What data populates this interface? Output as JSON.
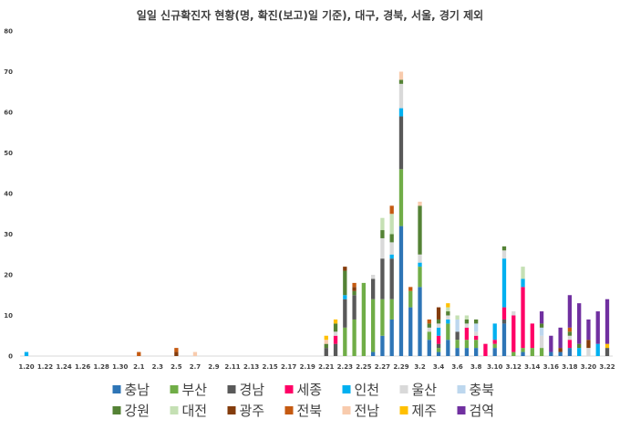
{
  "chart_data": {
    "type": "bar",
    "stacked": true,
    "title": "일일 신규확진자 현황(명, 확진(보고)일 기준), 대구, 경북, 서울, 경기 제외",
    "xlabel": "",
    "ylabel": "",
    "ylim": [
      0,
      80
    ],
    "yticks": [
      0,
      10,
      20,
      30,
      40,
      50,
      60,
      70,
      80
    ],
    "grid": false,
    "legend_position": "bottom",
    "categories": [
      "1.20",
      "1.21",
      "1.22",
      "1.23",
      "1.24",
      "1.25",
      "1.26",
      "1.27",
      "1.28",
      "1.29",
      "1.30",
      "1.31",
      "2.1",
      "2.2",
      "2.3",
      "2.4",
      "2.5",
      "2.6",
      "2.7",
      "2.8",
      "2.9",
      "2.10",
      "2.11",
      "2.12",
      "2.13",
      "2.14",
      "2.15",
      "2.16",
      "2.17",
      "2.18",
      "2.19",
      "2.20",
      "2.21",
      "2.22",
      "2.23",
      "2.24",
      "2.25",
      "2.26",
      "2.27",
      "2.28",
      "2.29",
      "3.1",
      "3.2",
      "3.3",
      "3.4",
      "3.5",
      "3.6",
      "3.7",
      "3.8",
      "3.9",
      "3.10",
      "3.11",
      "3.12",
      "3.13",
      "3.14",
      "3.15",
      "3.16",
      "3.17",
      "3.18",
      "3.19",
      "3.20",
      "3.21",
      "3.22"
    ],
    "tick_labels": [
      "1.20",
      "1.22",
      "1.24",
      "1.26",
      "1.28",
      "1.30",
      "2.1",
      "2.3",
      "2.5",
      "2.7",
      "2.9",
      "2.11",
      "2.13",
      "2.15",
      "2.17",
      "2.19",
      "2.21",
      "2.23",
      "2.25",
      "2.27",
      "2.29",
      "3.2",
      "3.4",
      "3.6",
      "3.8",
      "3.10",
      "3.12",
      "3.14",
      "3.16",
      "3.18",
      "3.20",
      "3.22"
    ],
    "series": [
      {
        "name": "충남",
        "color": "#2e75b6",
        "values": [
          0,
          0,
          0,
          0,
          0,
          0,
          0,
          0,
          0,
          0,
          0,
          0,
          0,
          0,
          0,
          0,
          0,
          0,
          0,
          0,
          0,
          0,
          0,
          0,
          0,
          0,
          0,
          0,
          0,
          0,
          0,
          0,
          0,
          0,
          0,
          0,
          0,
          1,
          5,
          9,
          32,
          12,
          17,
          4,
          1,
          4,
          2,
          2,
          2,
          0,
          2,
          8,
          0,
          1,
          0,
          0,
          1,
          1,
          2,
          0,
          0,
          0,
          0
        ]
      },
      {
        "name": "부산",
        "color": "#70ad47",
        "values": [
          0,
          0,
          0,
          0,
          0,
          0,
          0,
          0,
          0,
          0,
          0,
          0,
          0,
          0,
          0,
          0,
          0,
          0,
          0,
          0,
          0,
          0,
          0,
          0,
          0,
          0,
          0,
          0,
          0,
          0,
          0,
          0,
          0,
          0,
          7,
          9,
          18,
          13,
          9,
          5,
          14,
          4,
          5,
          2,
          1,
          4,
          2,
          2,
          2,
          0,
          1,
          0,
          1,
          1,
          2,
          2,
          0,
          0,
          0,
          0,
          0,
          0,
          0
        ]
      },
      {
        "name": "경남",
        "color": "#595959",
        "values": [
          0,
          0,
          0,
          0,
          0,
          0,
          0,
          0,
          0,
          0,
          0,
          0,
          0,
          0,
          0,
          0,
          0,
          0,
          0,
          0,
          0,
          0,
          0,
          0,
          0,
          0,
          0,
          0,
          0,
          0,
          0,
          0,
          2,
          3,
          7,
          6,
          0,
          5,
          10,
          10,
          13,
          0,
          0,
          0,
          1,
          0,
          2,
          0,
          0,
          0,
          0,
          1,
          0,
          0,
          0,
          0,
          0,
          0,
          0,
          0,
          0,
          0,
          2
        ]
      },
      {
        "name": "세종",
        "color": "#ff0066",
        "values": [
          0,
          0,
          0,
          0,
          0,
          0,
          0,
          0,
          0,
          0,
          0,
          0,
          0,
          0,
          0,
          0,
          0,
          0,
          0,
          0,
          0,
          0,
          0,
          0,
          0,
          0,
          0,
          0,
          0,
          0,
          0,
          0,
          0,
          2,
          0,
          0,
          0,
          0,
          0,
          0,
          0,
          0,
          0,
          0,
          2,
          0,
          0,
          3,
          1,
          3,
          1,
          3,
          9,
          15,
          6,
          0,
          0,
          0,
          2,
          0,
          0,
          0,
          0
        ]
      },
      {
        "name": "인천",
        "color": "#00b0f0",
        "values": [
          1,
          0,
          0,
          0,
          0,
          0,
          0,
          0,
          0,
          0,
          0,
          0,
          0,
          0,
          0,
          0,
          0,
          0,
          0,
          0,
          0,
          0,
          0,
          0,
          0,
          0,
          0,
          0,
          0,
          0,
          0,
          0,
          0,
          0,
          1,
          0,
          0,
          0,
          0,
          1,
          2,
          0,
          1,
          0,
          2,
          1,
          0,
          0,
          0,
          0,
          4,
          12,
          0,
          2,
          0,
          0,
          0,
          0,
          0,
          2,
          0,
          3,
          0
        ]
      },
      {
        "name": "울산",
        "color": "#d9d9d9",
        "values": [
          0,
          0,
          0,
          0,
          0,
          0,
          0,
          0,
          0,
          0,
          0,
          0,
          0,
          0,
          0,
          0,
          0,
          0,
          0,
          0,
          0,
          0,
          0,
          0,
          0,
          0,
          0,
          0,
          0,
          0,
          0,
          0,
          0,
          1,
          0,
          0,
          0,
          1,
          5,
          3,
          6,
          0,
          2,
          1,
          1,
          1,
          0,
          1,
          1,
          0,
          0,
          2,
          1,
          0,
          0,
          3,
          0,
          0,
          1,
          0,
          2,
          0,
          0
        ]
      },
      {
        "name": "충북",
        "color": "#bdd7ee",
        "values": [
          0,
          0,
          0,
          0,
          0,
          0,
          0,
          0,
          0,
          0,
          0,
          0,
          0,
          0,
          0,
          0,
          0,
          0,
          0,
          0,
          0,
          0,
          0,
          0,
          0,
          0,
          0,
          0,
          0,
          0,
          0,
          0,
          0,
          0,
          0,
          0,
          0,
          0,
          0,
          0,
          0,
          0,
          0,
          0,
          0,
          0,
          3,
          0,
          2,
          0,
          0,
          0,
          0,
          0,
          0,
          2,
          0,
          0,
          0,
          0,
          0,
          0,
          0
        ]
      },
      {
        "name": "강원",
        "color": "#548235",
        "values": [
          0,
          0,
          0,
          0,
          0,
          0,
          0,
          0,
          0,
          0,
          0,
          0,
          0,
          0,
          0,
          0,
          0,
          0,
          0,
          0,
          0,
          0,
          0,
          0,
          0,
          0,
          0,
          0,
          0,
          0,
          0,
          0,
          1,
          2,
          6,
          1,
          0,
          0,
          2,
          2,
          1,
          0,
          12,
          1,
          1,
          1,
          0,
          1,
          1,
          0,
          0,
          1,
          0,
          0,
          0,
          1,
          0,
          0,
          1,
          1,
          0,
          0,
          0
        ]
      },
      {
        "name": "대전",
        "color": "#c5e0b4",
        "values": [
          0,
          0,
          0,
          0,
          0,
          0,
          0,
          0,
          0,
          0,
          0,
          0,
          0,
          0,
          0,
          0,
          0,
          0,
          0,
          0,
          0,
          0,
          0,
          0,
          0,
          0,
          0,
          0,
          0,
          0,
          0,
          0,
          0,
          0,
          0,
          0,
          0,
          0,
          3,
          5,
          0,
          0,
          0,
          0,
          0,
          1,
          1,
          1,
          0,
          0,
          0,
          0,
          0,
          3,
          0,
          0,
          0,
          0,
          0,
          0,
          0,
          0,
          0
        ]
      },
      {
        "name": "광주",
        "color": "#843c0c",
        "values": [
          0,
          0,
          0,
          0,
          0,
          0,
          0,
          0,
          0,
          0,
          0,
          0,
          0,
          0,
          0,
          0,
          1,
          0,
          0,
          0,
          0,
          0,
          0,
          0,
          0,
          0,
          0,
          0,
          0,
          0,
          0,
          0,
          0,
          0,
          1,
          1,
          0,
          0,
          0,
          0,
          0,
          0,
          0,
          0,
          3,
          0,
          0,
          0,
          0,
          0,
          0,
          0,
          0,
          0,
          0,
          0,
          0,
          1,
          0,
          0,
          2,
          0,
          0
        ]
      },
      {
        "name": "전북",
        "color": "#c55a11",
        "values": [
          0,
          0,
          0,
          0,
          0,
          0,
          0,
          0,
          0,
          0,
          0,
          0,
          1,
          0,
          0,
          0,
          1,
          0,
          0,
          0,
          0,
          0,
          0,
          0,
          0,
          0,
          0,
          0,
          0,
          0,
          0,
          0,
          0,
          0,
          0,
          1,
          0,
          0,
          0,
          2,
          0,
          1,
          0,
          1,
          0,
          0,
          0,
          0,
          0,
          0,
          0,
          0,
          0,
          0,
          0,
          0,
          0,
          0,
          1,
          0,
          0,
          0,
          0
        ]
      },
      {
        "name": "전남",
        "color": "#f8cbad",
        "values": [
          0,
          0,
          0,
          0,
          0,
          0,
          0,
          0,
          0,
          0,
          0,
          0,
          0,
          0,
          0,
          0,
          0,
          0,
          1,
          0,
          0,
          0,
          0,
          0,
          0,
          0,
          0,
          0,
          0,
          0,
          0,
          0,
          1,
          0,
          0,
          0,
          0,
          0,
          0,
          0,
          2,
          0,
          1,
          0,
          0,
          0,
          0,
          0,
          0,
          0,
          0,
          0,
          0,
          0,
          0,
          0,
          0,
          0,
          0,
          0,
          0,
          0,
          0
        ]
      },
      {
        "name": "제주",
        "color": "#ffc000",
        "values": [
          0,
          0,
          0,
          0,
          0,
          0,
          0,
          0,
          0,
          0,
          0,
          0,
          0,
          0,
          0,
          0,
          0,
          0,
          0,
          0,
          0,
          0,
          0,
          0,
          0,
          0,
          0,
          0,
          0,
          0,
          0,
          0,
          1,
          1,
          0,
          0,
          0,
          0,
          0,
          0,
          0,
          0,
          0,
          0,
          0,
          1,
          0,
          0,
          0,
          0,
          0,
          0,
          0,
          0,
          0,
          0,
          0,
          0,
          0,
          0,
          0,
          0,
          1
        ]
      },
      {
        "name": "검역",
        "color": "#7030a0",
        "values": [
          0,
          0,
          0,
          0,
          0,
          0,
          0,
          0,
          0,
          0,
          0,
          0,
          0,
          0,
          0,
          0,
          0,
          0,
          0,
          0,
          0,
          0,
          0,
          0,
          0,
          0,
          0,
          0,
          0,
          0,
          0,
          0,
          0,
          0,
          0,
          0,
          0,
          0,
          0,
          0,
          0,
          0,
          0,
          0,
          0,
          0,
          0,
          0,
          0,
          0,
          0,
          0,
          0,
          0,
          0,
          3,
          4,
          5,
          8,
          10,
          5,
          8,
          11
        ]
      }
    ]
  }
}
